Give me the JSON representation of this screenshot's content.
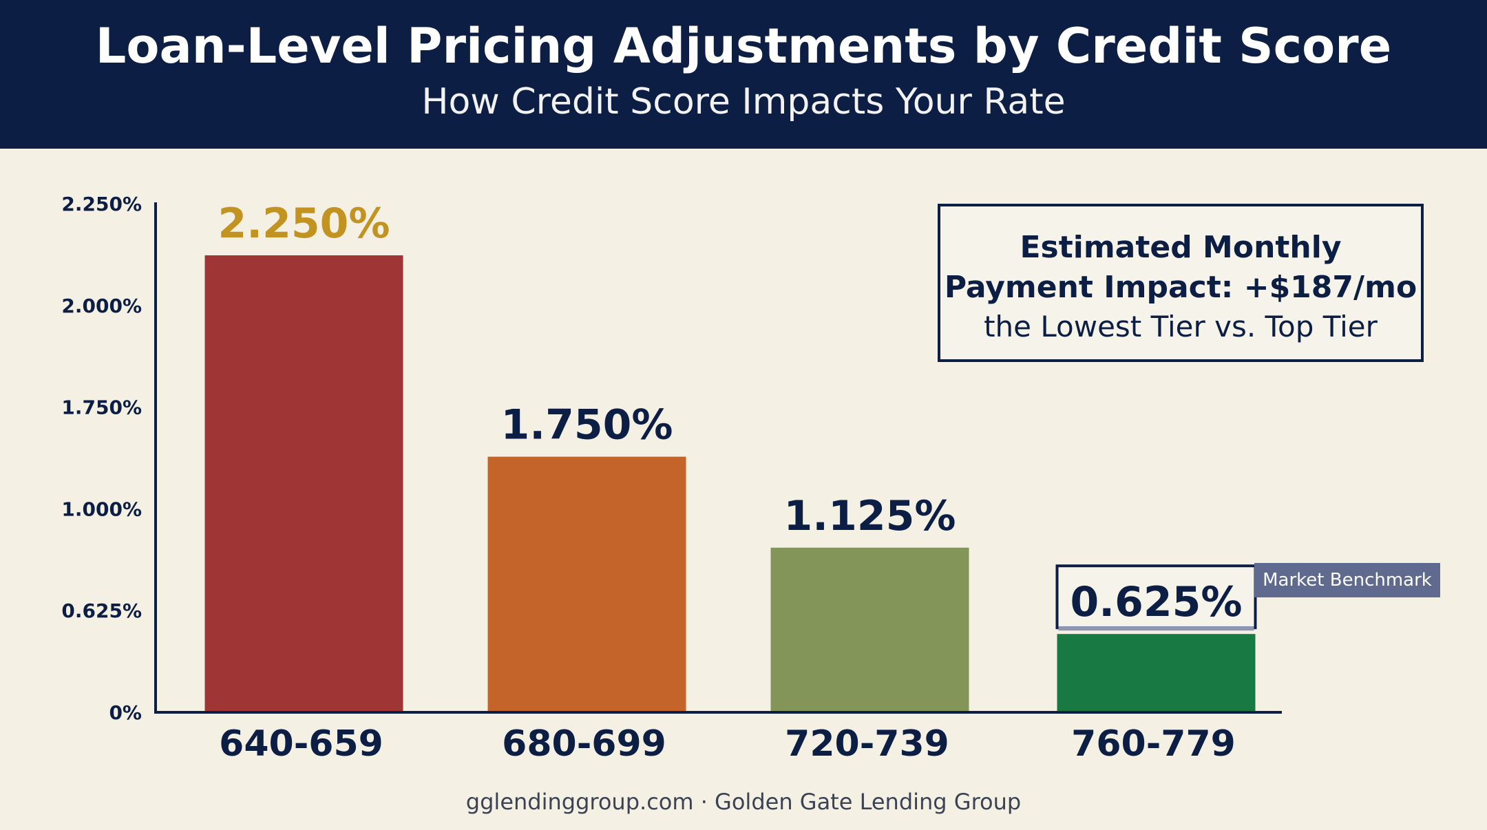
{
  "header": {
    "title": "Loan-Level Pricing Adjustments by Credit Score",
    "subtitle": "How Credit Score Impacts Your Rate"
  },
  "chart_data": {
    "type": "bar",
    "categories": [
      "640-659",
      "680-699",
      "720-739",
      "760-779"
    ],
    "values": [
      2.25,
      1.75,
      1.125,
      0.625
    ],
    "data_labels": [
      "2.250%",
      "1.750%",
      "1.125%",
      "0.625%"
    ],
    "y_ticks": [
      {
        "value": 0,
        "label": "0%"
      },
      {
        "value": 0.625,
        "label": "0.625%"
      },
      {
        "value": 1.0,
        "label": "1.000%"
      },
      {
        "value": 1.75,
        "label": "1.750%"
      },
      {
        "value": 2.0,
        "label": "2.000%"
      },
      {
        "value": 2.25,
        "label": "2.250%"
      }
    ],
    "ylim": [
      0,
      2.25
    ],
    "grid": false,
    "bar_colors": [
      "#a03535",
      "#c4632a",
      "#839558",
      "#187a42"
    ],
    "label_colors": [
      "#c39321",
      "#0d1e44",
      "#0d1e44",
      "#0d1e44"
    ],
    "highlight_index": 3,
    "axis_color": "#0d1e44",
    "text_color": "#0d1e44"
  },
  "callout": {
    "line1": "Estimated Monthly",
    "line2": "Payment Impact: +$187/mo",
    "line3": "the Lowest Tier vs. Top Tier"
  },
  "benchmark_label": "Market Benchmark",
  "footer": "gglendinggroup.com · Golden Gate Lending Group"
}
